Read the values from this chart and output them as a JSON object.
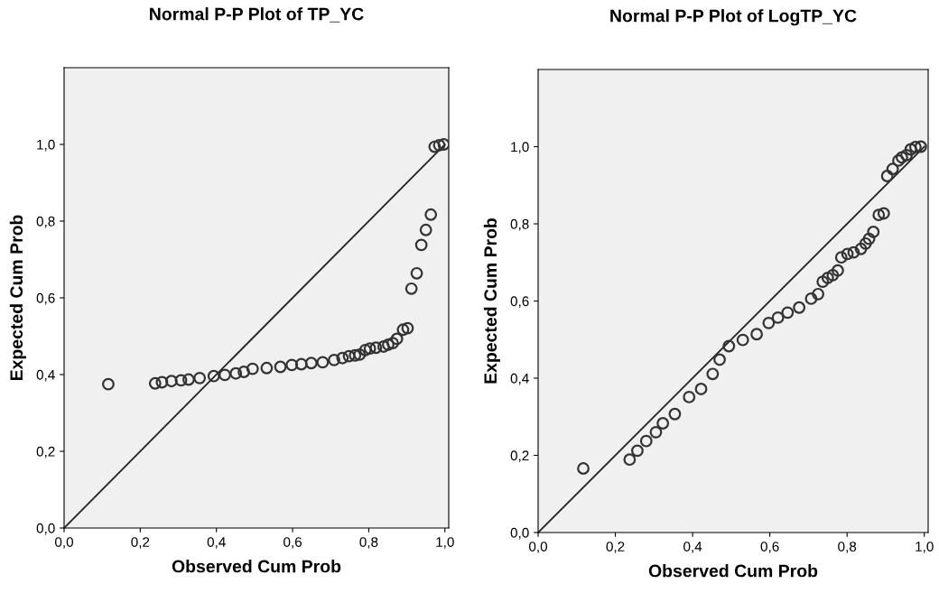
{
  "chart_data": [
    {
      "type": "scatter",
      "title": "Normal P-P Plot of TP_YC",
      "xlabel": "Observed Cum Prob",
      "ylabel": "Expected Cum Prob",
      "xlim": [
        0,
        1.01
      ],
      "ylim": [
        0,
        1.2
      ],
      "xticks": [
        {
          "value": 0,
          "label": "0,0"
        },
        {
          "value": 0.2,
          "label": "0,2"
        },
        {
          "value": 0.4,
          "label": "0,4"
        },
        {
          "value": 0.6,
          "label": "0,6"
        },
        {
          "value": 0.8,
          "label": "0,8"
        },
        {
          "value": 1.0,
          "label": "1,0"
        }
      ],
      "yticks": [
        {
          "value": 0,
          "label": "0,0"
        },
        {
          "value": 0.2,
          "label": "0,2"
        },
        {
          "value": 0.4,
          "label": "0,4"
        },
        {
          "value": 0.6,
          "label": "0,6"
        },
        {
          "value": 0.8,
          "label": "0,8"
        },
        {
          "value": 1.0,
          "label": "1,0"
        }
      ],
      "series": [
        {
          "marker": "circle",
          "color": "#333333",
          "x": [
            0.116,
            0.239,
            0.257,
            0.282,
            0.307,
            0.327,
            0.356,
            0.393,
            0.422,
            0.451,
            0.472,
            0.495,
            0.532,
            0.568,
            0.598,
            0.623,
            0.649,
            0.679,
            0.709,
            0.731,
            0.748,
            0.764,
            0.776,
            0.791,
            0.803,
            0.819,
            0.839,
            0.851,
            0.863,
            0.874,
            0.89,
            0.902,
            0.912,
            0.926,
            0.938,
            0.95,
            0.963,
            0.973,
            0.985,
            0.997
          ],
          "values": [
            0.375,
            0.377,
            0.38,
            0.383,
            0.385,
            0.387,
            0.391,
            0.396,
            0.399,
            0.403,
            0.407,
            0.415,
            0.417,
            0.42,
            0.425,
            0.427,
            0.43,
            0.432,
            0.438,
            0.443,
            0.448,
            0.45,
            0.452,
            0.464,
            0.468,
            0.47,
            0.473,
            0.478,
            0.482,
            0.493,
            0.517,
            0.521,
            0.624,
            0.664,
            0.738,
            0.777,
            0.817,
            0.994,
            0.998,
            1.0
          ]
        },
        {
          "type": "line",
          "color": "#222222",
          "x": [
            0,
            1
          ],
          "values": [
            0,
            1
          ]
        }
      ]
    },
    {
      "type": "scatter",
      "title": "Normal P-P Plot of LogTP_YC",
      "xlabel": "Observed Cum Prob",
      "ylabel": "Expected Cum Prob",
      "xlim": [
        0,
        1.01
      ],
      "ylim": [
        0,
        1.2
      ],
      "xticks": [
        {
          "value": 0,
          "label": "0,0"
        },
        {
          "value": 0.2,
          "label": "0,2"
        },
        {
          "value": 0.4,
          "label": "0,4"
        },
        {
          "value": 0.6,
          "label": "0,6"
        },
        {
          "value": 0.8,
          "label": "0,8"
        },
        {
          "value": 1.0,
          "label": "1,0"
        }
      ],
      "yticks": [
        {
          "value": 0,
          "label": "0,0"
        },
        {
          "value": 0.2,
          "label": "0,2"
        },
        {
          "value": 0.4,
          "label": "0,4"
        },
        {
          "value": 0.6,
          "label": "0,6"
        },
        {
          "value": 0.8,
          "label": "0,8"
        },
        {
          "value": 1.0,
          "label": "1,0"
        }
      ],
      "series": [
        {
          "marker": "circle",
          "color": "#333333",
          "x": [
            0.117,
            0.237,
            0.257,
            0.28,
            0.305,
            0.323,
            0.354,
            0.391,
            0.422,
            0.452,
            0.47,
            0.494,
            0.53,
            0.566,
            0.597,
            0.621,
            0.646,
            0.676,
            0.707,
            0.725,
            0.737,
            0.75,
            0.763,
            0.776,
            0.785,
            0.801,
            0.817,
            0.836,
            0.848,
            0.857,
            0.868,
            0.882,
            0.895,
            0.904,
            0.918,
            0.933,
            0.942,
            0.954,
            0.965,
            0.977,
            0.991
          ],
          "values": [
            0.166,
            0.189,
            0.212,
            0.237,
            0.26,
            0.283,
            0.307,
            0.351,
            0.372,
            0.411,
            0.448,
            0.483,
            0.499,
            0.514,
            0.543,
            0.557,
            0.57,
            0.583,
            0.606,
            0.618,
            0.65,
            0.66,
            0.667,
            0.679,
            0.713,
            0.722,
            0.726,
            0.735,
            0.749,
            0.761,
            0.779,
            0.823,
            0.827,
            0.924,
            0.942,
            0.964,
            0.972,
            0.978,
            0.993,
            0.999,
            1.0
          ]
        },
        {
          "type": "line",
          "color": "#222222",
          "x": [
            0,
            1
          ],
          "values": [
            0,
            1
          ]
        }
      ]
    }
  ]
}
